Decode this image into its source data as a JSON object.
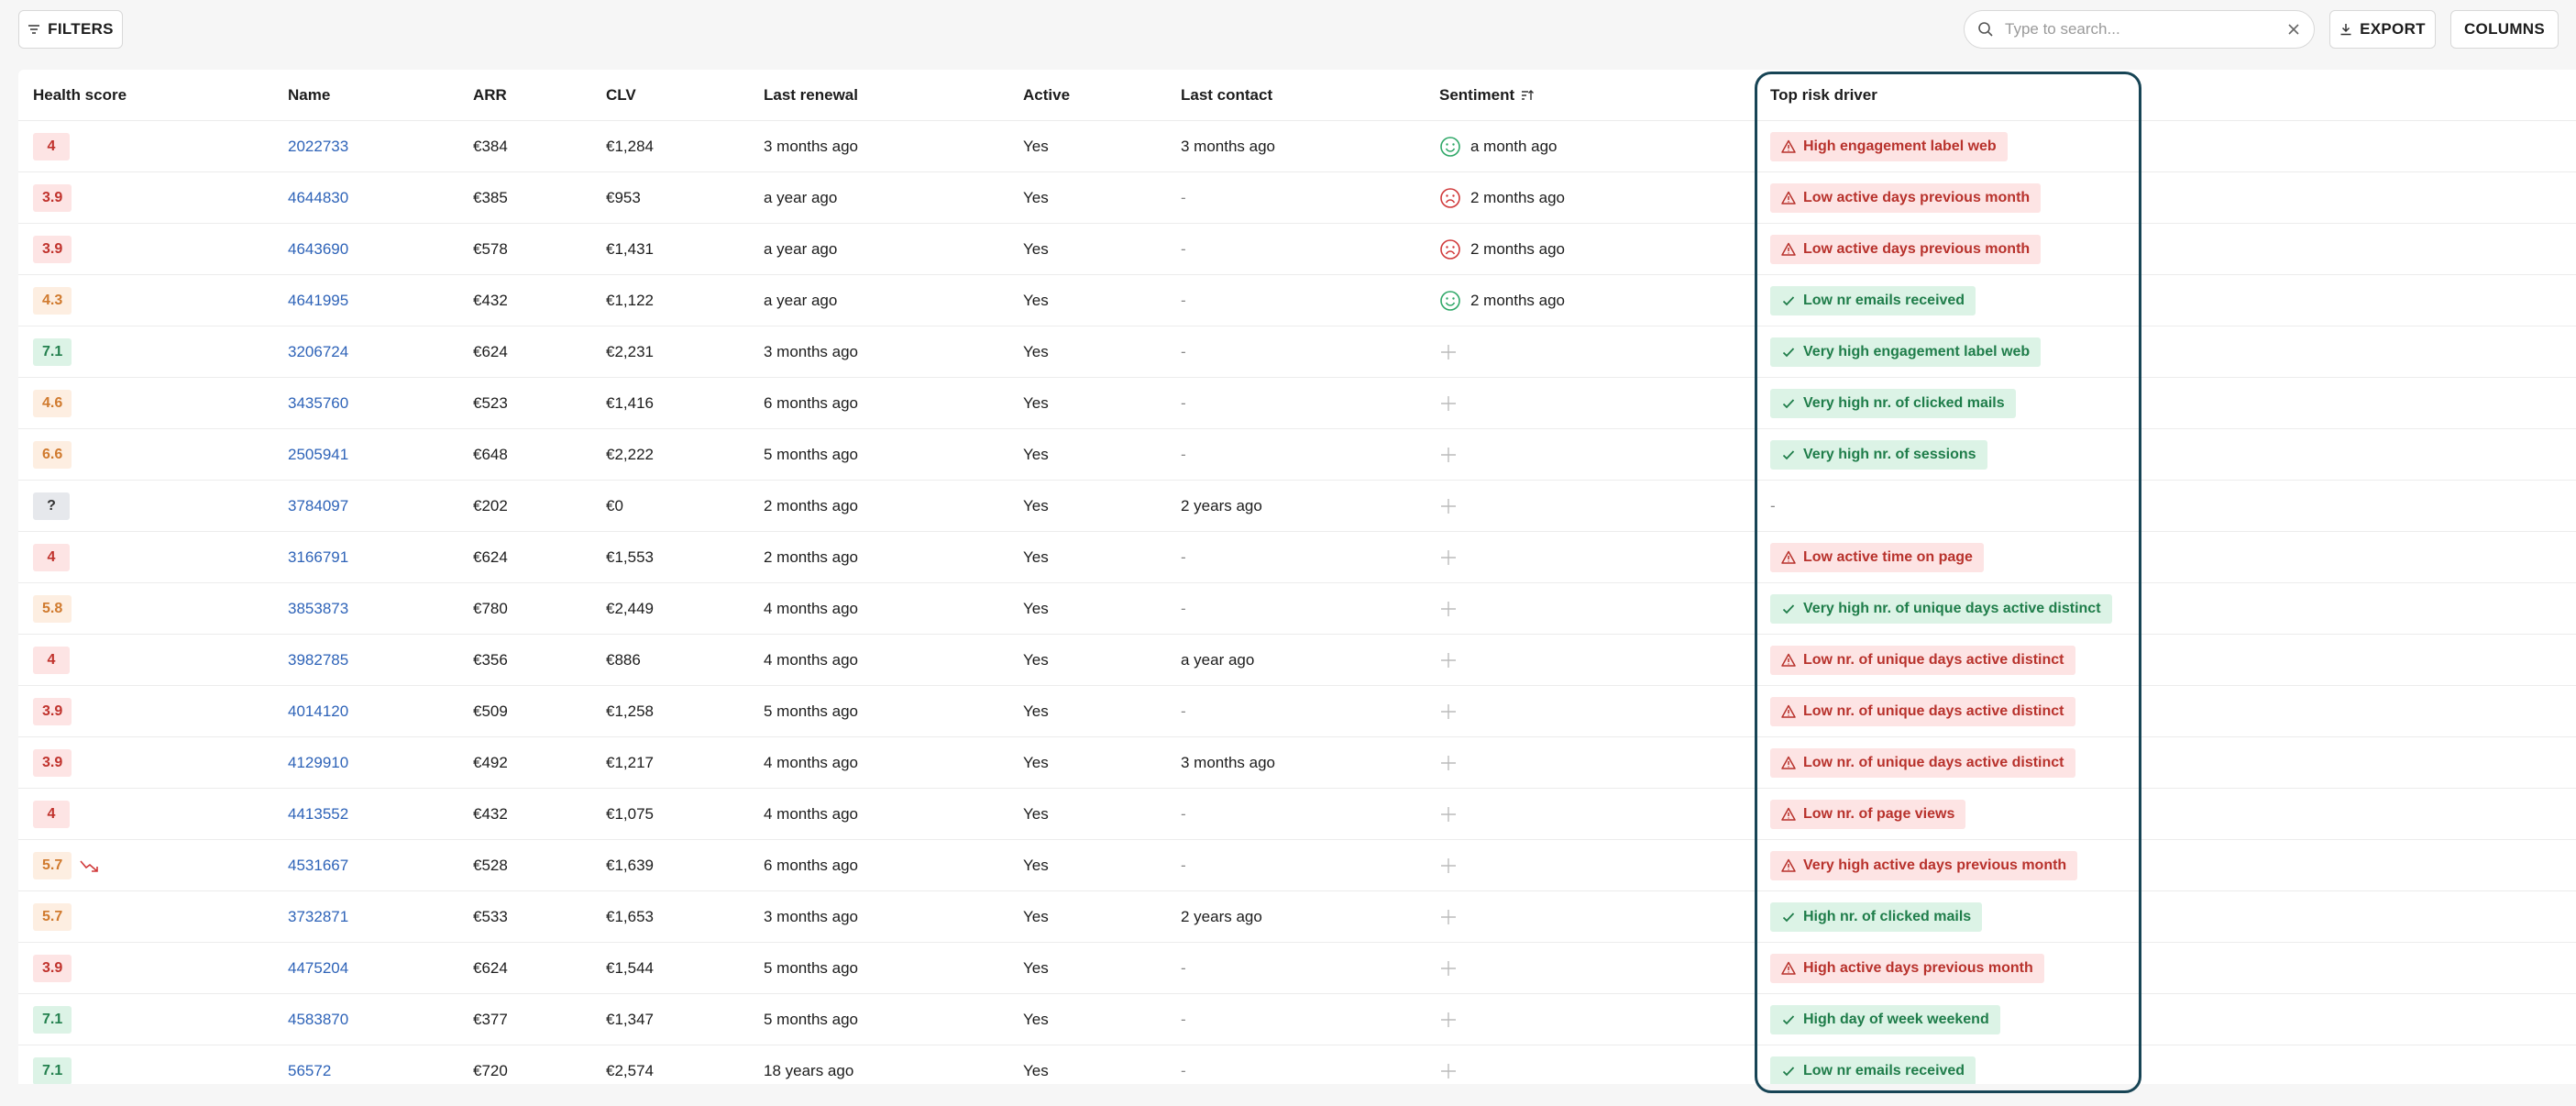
{
  "toolbar": {
    "filters_label": "FILTERS",
    "search_placeholder": "Type to search...",
    "export_label": "EXPORT",
    "columns_label": "COLUMNS"
  },
  "columns": {
    "health": "Health score",
    "name": "Name",
    "arr": "ARR",
    "clv": "CLV",
    "renewal": "Last renewal",
    "active": "Active",
    "contact": "Last contact",
    "sentiment": "Sentiment",
    "risk": "Top risk driver"
  },
  "rows": [
    {
      "score": "4",
      "level": "red",
      "name": "2022733",
      "arr": "€384",
      "clv": "€1,284",
      "renewal": "3 months ago",
      "active": "Yes",
      "contact": "3 months ago",
      "sentiment": "happy",
      "sentiment_time": "a month ago",
      "risk": "High engagement label web",
      "risk_type": "bad"
    },
    {
      "score": "3.9",
      "level": "red",
      "name": "4644830",
      "arr": "€385",
      "clv": "€953",
      "renewal": "a year ago",
      "active": "Yes",
      "contact": "-",
      "sentiment": "sad",
      "sentiment_time": "2 months ago",
      "risk": "Low active days previous month",
      "risk_type": "bad"
    },
    {
      "score": "3.9",
      "level": "red",
      "name": "4643690",
      "arr": "€578",
      "clv": "€1,431",
      "renewal": "a year ago",
      "active": "Yes",
      "contact": "-",
      "sentiment": "sad",
      "sentiment_time": "2 months ago",
      "risk": "Low active days previous month",
      "risk_type": "bad"
    },
    {
      "score": "4.3",
      "level": "orange",
      "name": "4641995",
      "arr": "€432",
      "clv": "€1,122",
      "renewal": "a year ago",
      "active": "Yes",
      "contact": "-",
      "sentiment": "happy",
      "sentiment_time": "2 months ago",
      "risk": "Low nr emails received",
      "risk_type": "good"
    },
    {
      "score": "7.1",
      "level": "green",
      "name": "3206724",
      "arr": "€624",
      "clv": "€2,231",
      "renewal": "3 months ago",
      "active": "Yes",
      "contact": "-",
      "sentiment": "add",
      "sentiment_time": "",
      "risk": "Very high engagement label web",
      "risk_type": "good"
    },
    {
      "score": "4.6",
      "level": "orange",
      "name": "3435760",
      "arr": "€523",
      "clv": "€1,416",
      "renewal": "6 months ago",
      "active": "Yes",
      "contact": "-",
      "sentiment": "add",
      "sentiment_time": "",
      "risk": "Very high nr. of clicked mails",
      "risk_type": "good"
    },
    {
      "score": "6.6",
      "level": "orange",
      "name": "2505941",
      "arr": "€648",
      "clv": "€2,222",
      "renewal": "5 months ago",
      "active": "Yes",
      "contact": "-",
      "sentiment": "add",
      "sentiment_time": "",
      "risk": "Very high nr. of sessions",
      "risk_type": "good"
    },
    {
      "score": "?",
      "level": "grey",
      "name": "3784097",
      "arr": "€202",
      "clv": "€0",
      "renewal": "2 months ago",
      "active": "Yes",
      "contact": "2 years ago",
      "sentiment": "add",
      "sentiment_time": "",
      "risk": "-",
      "risk_type": "none"
    },
    {
      "score": "4",
      "level": "red",
      "name": "3166791",
      "arr": "€624",
      "clv": "€1,553",
      "renewal": "2 months ago",
      "active": "Yes",
      "contact": "-",
      "sentiment": "add",
      "sentiment_time": "",
      "risk": "Low active time on page",
      "risk_type": "bad"
    },
    {
      "score": "5.8",
      "level": "orange",
      "name": "3853873",
      "arr": "€780",
      "clv": "€2,449",
      "renewal": "4 months ago",
      "active": "Yes",
      "contact": "-",
      "sentiment": "add",
      "sentiment_time": "",
      "risk": "Very high nr. of unique days active distinct",
      "risk_type": "good"
    },
    {
      "score": "4",
      "level": "red",
      "name": "3982785",
      "arr": "€356",
      "clv": "€886",
      "renewal": "4 months ago",
      "active": "Yes",
      "contact": "a year ago",
      "sentiment": "add",
      "sentiment_time": "",
      "risk": "Low nr. of unique days active distinct",
      "risk_type": "bad"
    },
    {
      "score": "3.9",
      "level": "red",
      "name": "4014120",
      "arr": "€509",
      "clv": "€1,258",
      "renewal": "5 months ago",
      "active": "Yes",
      "contact": "-",
      "sentiment": "add",
      "sentiment_time": "",
      "risk": "Low nr. of unique days active distinct",
      "risk_type": "bad"
    },
    {
      "score": "3.9",
      "level": "red",
      "name": "4129910",
      "arr": "€492",
      "clv": "€1,217",
      "renewal": "4 months ago",
      "active": "Yes",
      "contact": "3 months ago",
      "sentiment": "add",
      "sentiment_time": "",
      "risk": "Low nr. of unique days active distinct",
      "risk_type": "bad"
    },
    {
      "score": "4",
      "level": "red",
      "name": "4413552",
      "arr": "€432",
      "clv": "€1,075",
      "renewal": "4 months ago",
      "active": "Yes",
      "contact": "-",
      "sentiment": "add",
      "sentiment_time": "",
      "risk": "Low nr. of page views",
      "risk_type": "bad"
    },
    {
      "score": "5.7",
      "level": "orange",
      "trend": "down",
      "name": "4531667",
      "arr": "€528",
      "clv": "€1,639",
      "renewal": "6 months ago",
      "active": "Yes",
      "contact": "-",
      "sentiment": "add",
      "sentiment_time": "",
      "risk": "Very high active days previous month",
      "risk_type": "bad"
    },
    {
      "score": "5.7",
      "level": "orange",
      "name": "3732871",
      "arr": "€533",
      "clv": "€1,653",
      "renewal": "3 months ago",
      "active": "Yes",
      "contact": "2 years ago",
      "sentiment": "add",
      "sentiment_time": "",
      "risk": "High nr. of clicked mails",
      "risk_type": "good"
    },
    {
      "score": "3.9",
      "level": "red",
      "name": "4475204",
      "arr": "€624",
      "clv": "€1,544",
      "renewal": "5 months ago",
      "active": "Yes",
      "contact": "-",
      "sentiment": "add",
      "sentiment_time": "",
      "risk": "High active days previous month",
      "risk_type": "bad"
    },
    {
      "score": "7.1",
      "level": "green",
      "name": "4583870",
      "arr": "€377",
      "clv": "€1,347",
      "renewal": "5 months ago",
      "active": "Yes",
      "contact": "-",
      "sentiment": "add",
      "sentiment_time": "",
      "risk": "High day of week weekend",
      "risk_type": "good"
    },
    {
      "score": "7.1",
      "level": "green",
      "name": "56572",
      "arr": "€720",
      "clv": "€2,574",
      "renewal": "18 years ago",
      "active": "Yes",
      "contact": "-",
      "sentiment": "add",
      "sentiment_time": "",
      "risk": "Low nr emails received",
      "risk_type": "good"
    }
  ],
  "colors": {
    "highlight_border": "#174455",
    "link": "#2e63b8",
    "risk_bad": "#b8322c",
    "risk_good": "#1f7d4a"
  }
}
